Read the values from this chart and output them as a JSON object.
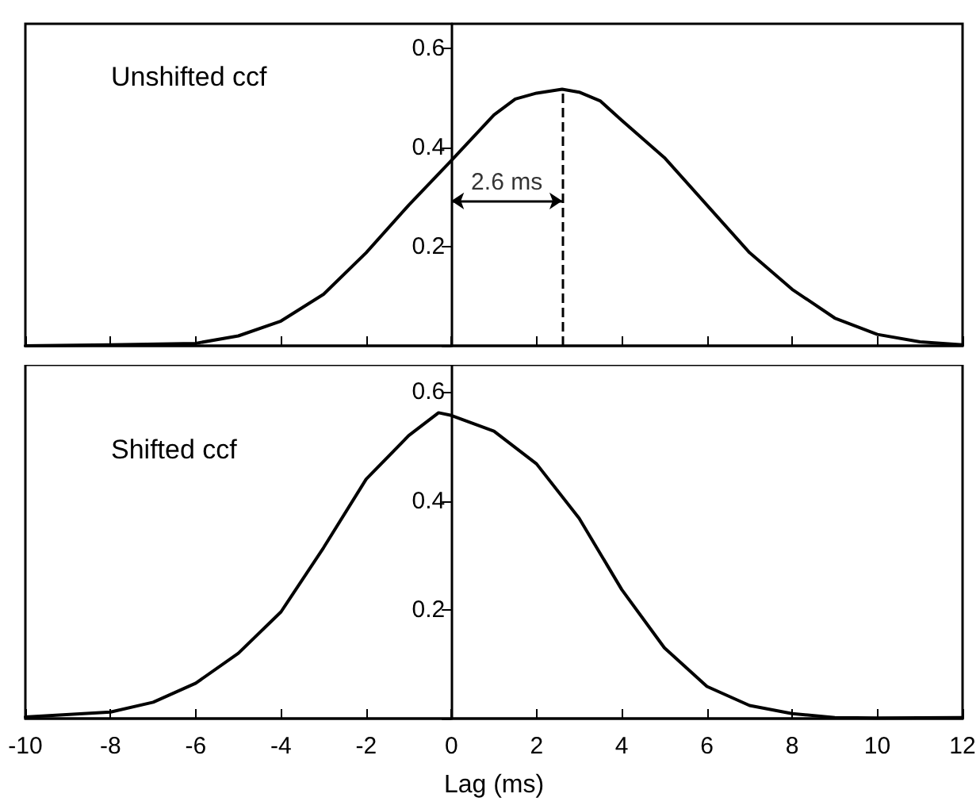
{
  "chart_data": [
    {
      "type": "line",
      "title": "Unshifted ccf",
      "x": [
        -10,
        -8,
        -6,
        -5,
        -4,
        -3,
        -2,
        -1,
        0,
        0.5,
        1,
        1.5,
        2,
        2.6,
        3,
        3.5,
        4,
        5,
        6,
        7,
        8,
        9,
        10,
        11,
        12
      ],
      "values": [
        0,
        0.002,
        0.005,
        0.02,
        0.05,
        0.104,
        0.188,
        0.284,
        0.374,
        0.42,
        0.466,
        0.498,
        0.51,
        0.518,
        0.512,
        0.494,
        0.455,
        0.38,
        0.284,
        0.188,
        0.114,
        0.056,
        0.023,
        0.008,
        0.002
      ],
      "color": "#000000",
      "xlim": [
        -10,
        12
      ],
      "xticks": [
        -10,
        -8,
        -6,
        -4,
        -2,
        0,
        2,
        4,
        6,
        8,
        10,
        12
      ],
      "ylim": [
        0,
        0.65
      ],
      "yticks": [
        {
          "value": 0,
          "label": null
        },
        0.2,
        0.4,
        0.6
      ],
      "tick_labels": "y",
      "grid": false,
      "marker": "none",
      "line_style": "solid",
      "ref_lines": [
        {
          "axis": "x",
          "value": 2.6,
          "label": null,
          "line_style": "dashed"
        }
      ],
      "annotations": [
        "2.6 ms"
      ]
    },
    {
      "type": "line",
      "title": "Shifted ccf",
      "xlabel": "Lag (ms)",
      "x": [
        -10,
        -8,
        -7,
        -6,
        -5,
        -4,
        -3,
        -2,
        -1,
        -0.3,
        0,
        1,
        2,
        3,
        4,
        5,
        6,
        7,
        8,
        9,
        10,
        12
      ],
      "values": [
        0.003,
        0.012,
        0.03,
        0.065,
        0.12,
        0.196,
        0.314,
        0.44,
        0.52,
        0.562,
        0.557,
        0.528,
        0.468,
        0.368,
        0.237,
        0.13,
        0.059,
        0.024,
        0.009,
        0.002,
        0.001,
        0.002
      ],
      "color": "#000000",
      "xlim": [
        -10,
        12
      ],
      "xticks": [
        -10,
        -8,
        -6,
        -4,
        -2,
        0,
        2,
        4,
        6,
        8,
        10,
        12
      ],
      "ylim": [
        0,
        0.65
      ],
      "yticks": [
        {
          "value": 0,
          "label": null
        },
        0.2,
        0.4,
        0.6
      ],
      "grid": false,
      "marker": "none",
      "line_style": "solid"
    }
  ]
}
